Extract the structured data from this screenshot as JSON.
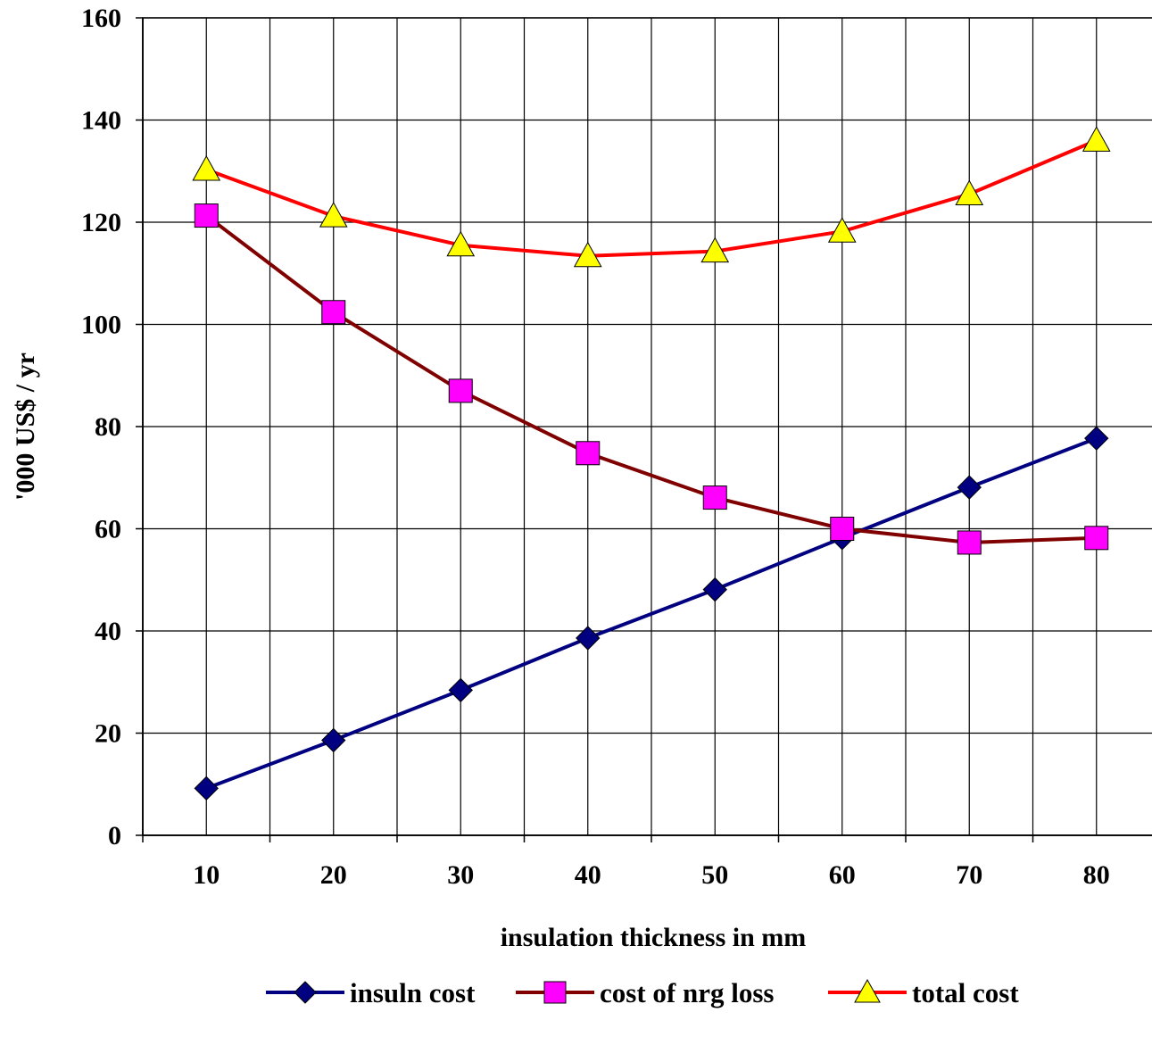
{
  "chart_data": {
    "type": "line",
    "title": "",
    "xlabel": "insulation thickness in mm",
    "ylabel": "'000 US$ / yr",
    "categories": [
      "10",
      "20",
      "30",
      "40",
      "50",
      "60",
      "70",
      "80"
    ],
    "ylim": [
      0,
      160
    ],
    "yticks": [
      "0",
      "20",
      "40",
      "60",
      "80",
      "100",
      "120",
      "140",
      "160"
    ],
    "grid": true,
    "legend_position": "bottom",
    "series": [
      {
        "name": "insuln cost",
        "values": [
          9.2,
          18.6,
          28.4,
          38.6,
          48.1,
          58.2,
          68.1,
          77.7
        ],
        "line_color": "#000080",
        "marker": "diamond",
        "marker_color": "#000080"
      },
      {
        "name": "cost of nrg loss",
        "values": [
          121.3,
          102.4,
          87.0,
          74.8,
          66.1,
          60.0,
          57.3,
          58.2
        ],
        "line_color": "#800000",
        "marker": "square",
        "marker_color": "#FF00FF"
      },
      {
        "name": "total cost",
        "values": [
          130.3,
          121.2,
          115.5,
          113.4,
          114.3,
          118.2,
          125.5,
          136.0
        ],
        "line_color": "#FF0000",
        "marker": "triangle",
        "marker_color": "#FFFF00"
      }
    ]
  }
}
